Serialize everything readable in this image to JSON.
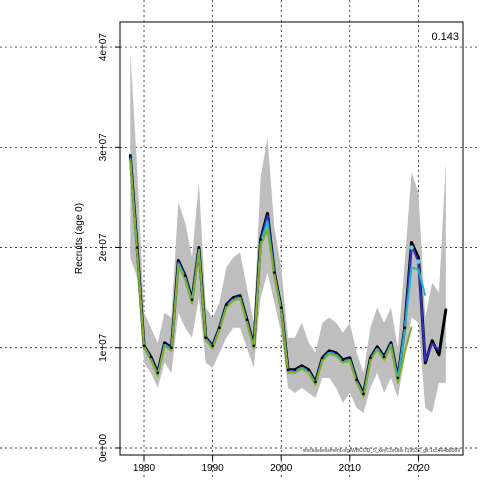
{
  "chart_data": {
    "type": "line",
    "title": "",
    "xlabel": "",
    "ylabel": "Recruits (age 0)",
    "annotation_value": "0.143",
    "footer_note": "stockassessment.org/WBCOD_5_keyCorObs.r19539_git:1cc464b8089",
    "xlim": [
      1976.5,
      2026.5
    ],
    "ylim": [
      -700000,
      42500000
    ],
    "x_ticks": [
      1980,
      1990,
      2000,
      2010,
      2020
    ],
    "x_tick_labels": [
      "1980",
      "1990",
      "2000",
      "2010",
      "2020"
    ],
    "y_ticks": [
      0,
      10000000,
      20000000,
      30000000,
      40000000
    ],
    "y_tick_labels": [
      "0e+00",
      "1e+07",
      "2e+07",
      "3e+07",
      "4e+07"
    ],
    "grid": true,
    "colors": {
      "ci_band": "#bebebe",
      "main_line": "#000000",
      "blue": "#3333cc",
      "cyan": "#29b6c4",
      "green": "#7fae2c",
      "point_cyan": "#66ccee"
    },
    "ci_years": [
      1978,
      1979,
      1980,
      1981,
      1982,
      1983,
      1984,
      1985,
      1986,
      1987,
      1988,
      1989,
      1990,
      1991,
      1992,
      1993,
      1994,
      1995,
      1996,
      1997,
      1998,
      1999,
      2000,
      2001,
      2002,
      2003,
      2004,
      2005,
      2006,
      2007,
      2008,
      2009,
      2010,
      2011,
      2012,
      2013,
      2014,
      2015,
      2016,
      2017,
      2018,
      2019,
      2020,
      2021,
      2022,
      2023,
      2024
    ],
    "ci_upper": [
      39500000,
      28000000,
      13500000,
      12000000,
      10500000,
      13500000,
      13000000,
      24500000,
      22500000,
      19000000,
      26500000,
      14000000,
      13000000,
      14500000,
      18000000,
      19000000,
      19500000,
      16000000,
      12500000,
      27000000,
      31000000,
      22000000,
      18000000,
      11000000,
      11000000,
      12500000,
      10500000,
      9500000,
      12500000,
      13000000,
      12500000,
      11500000,
      12500000,
      9500000,
      7500000,
      12000000,
      14000000,
      12500000,
      14000000,
      10000000,
      18500000,
      27500000,
      25500000,
      13000000,
      16500000,
      15500000,
      28500000
    ],
    "ci_lower": [
      19000000,
      17000000,
      8500000,
      7500000,
      6000000,
      8500000,
      7500000,
      13500000,
      12000000,
      11000000,
      15000000,
      8500000,
      8000000,
      9500000,
      11000000,
      12000000,
      12000000,
      10000000,
      8000000,
      15000000,
      17500000,
      14500000,
      11500000,
      6000000,
      5500000,
      6000000,
      5500000,
      5000000,
      7000000,
      7000000,
      6000000,
      4500000,
      5500000,
      4000000,
      3500000,
      6000000,
      7500000,
      5500000,
      7000000,
      5000000,
      9000000,
      13000000,
      12500000,
      4000000,
      3500000,
      6500000,
      6500000
    ],
    "series": [
      {
        "color": "#000000",
        "x": [
          1978,
          1979,
          1980,
          1981,
          1982,
          1983,
          1984,
          1985,
          1986,
          1987,
          1988,
          1989,
          1990,
          1991,
          1992,
          1993,
          1994,
          1995,
          1996,
          1997,
          1998,
          1999,
          2000,
          2001,
          2002,
          2003,
          2004,
          2005,
          2006,
          2007,
          2008,
          2009,
          2010,
          2011,
          2012,
          2013,
          2014,
          2015,
          2016,
          2017,
          2018,
          2019,
          2020,
          2021,
          2022,
          2023,
          2024
        ],
        "values": [
          29200000,
          20000000,
          10200000,
          9100000,
          7500000,
          10500000,
          10000000,
          18700000,
          17200000,
          14800000,
          20000000,
          11000000,
          10200000,
          12000000,
          14300000,
          15000000,
          15200000,
          12800000,
          10200000,
          20800000,
          23400000,
          17500000,
          14000000,
          7800000,
          7800000,
          8200000,
          7800000,
          6600000,
          9000000,
          9700000,
          9500000,
          8800000,
          9000000,
          6800000,
          5400000,
          9000000,
          10100000,
          9100000,
          10500000,
          7000000,
          12000000,
          20500000,
          19000000,
          8500000,
          10700000,
          9300000,
          13800000
        ]
      },
      {
        "color": "#3333cc",
        "x": [
          1978,
          1979,
          1980,
          1981,
          1982,
          1983,
          1984,
          1985,
          1986,
          1987,
          1988,
          1989,
          1990,
          1991,
          1992,
          1993,
          1994,
          1995,
          1996,
          1997,
          1998,
          1999,
          2000,
          2001,
          2002,
          2003,
          2004,
          2005,
          2006,
          2007,
          2008,
          2009,
          2010,
          2011,
          2012,
          2013,
          2014,
          2015,
          2016,
          2017,
          2018,
          2019,
          2020,
          2021,
          2022,
          2023
        ],
        "values": [
          29100000,
          19900000,
          10200000,
          9000000,
          7400000,
          10400000,
          9900000,
          18600000,
          17100000,
          14700000,
          19900000,
          11000000,
          10100000,
          12000000,
          14200000,
          14900000,
          15100000,
          12700000,
          10100000,
          20600000,
          23200000,
          17400000,
          13900000,
          7700000,
          7700000,
          8100000,
          7700000,
          6500000,
          8900000,
          9600000,
          9400000,
          8700000,
          8900000,
          6700000,
          5300000,
          8900000,
          10000000,
          9000000,
          10400000,
          6900000,
          11900000,
          20200000,
          18600000,
          8700000,
          10400000,
          9800000
        ]
      },
      {
        "color": "#29b6c4",
        "x": [
          1978,
          1979,
          1980,
          1981,
          1982,
          1983,
          1984,
          1985,
          1986,
          1987,
          1988,
          1989,
          1990,
          1991,
          1992,
          1993,
          1994,
          1995,
          1996,
          1997,
          1998,
          1999,
          2000,
          2001,
          2002,
          2003,
          2004,
          2005,
          2006,
          2007,
          2008,
          2009,
          2010,
          2011,
          2012,
          2013,
          2014,
          2015,
          2016,
          2017,
          2018,
          2019,
          2020,
          2021
        ],
        "values": [
          28900000,
          19700000,
          10100000,
          8900000,
          7300000,
          10300000,
          9800000,
          18400000,
          17000000,
          14600000,
          19800000,
          10900000,
          10000000,
          11900000,
          14100000,
          14800000,
          15000000,
          12600000,
          10000000,
          20400000,
          22600000,
          17300000,
          13800000,
          7600000,
          7600000,
          8000000,
          7600000,
          6400000,
          8800000,
          9500000,
          9300000,
          8600000,
          8800000,
          6600000,
          5200000,
          8800000,
          9900000,
          8900000,
          10300000,
          6800000,
          11800000,
          18000000,
          17800000,
          15200000
        ]
      },
      {
        "color": "#7fae2c",
        "x": [
          1978,
          1979,
          1980,
          1981,
          1982,
          1983,
          1984,
          1985,
          1986,
          1987,
          1988,
          1989,
          1990,
          1991,
          1992,
          1993,
          1994,
          1995,
          1996,
          1997,
          1998,
          1999,
          2000,
          2001,
          2002,
          2003,
          2004,
          2005,
          2006,
          2007,
          2008,
          2009,
          2010,
          2011,
          2012,
          2013,
          2014,
          2015,
          2016,
          2017,
          2018,
          2019
        ],
        "values": [
          28700000,
          19500000,
          10000000,
          8800000,
          7200000,
          10200000,
          9700000,
          18200000,
          16800000,
          14400000,
          19600000,
          10800000,
          9900000,
          11800000,
          14000000,
          14700000,
          14900000,
          12500000,
          9900000,
          20200000,
          21800000,
          17200000,
          13700000,
          7500000,
          7500000,
          7900000,
          7500000,
          6300000,
          8700000,
          9400000,
          9200000,
          8500000,
          8700000,
          6500000,
          5100000,
          8700000,
          9800000,
          8800000,
          10200000,
          6500000,
          9500000,
          12100000
        ]
      }
    ],
    "cyan_points": {
      "x": [
        2019,
        2020
      ],
      "values": [
        20000000,
        18600000
      ]
    }
  }
}
